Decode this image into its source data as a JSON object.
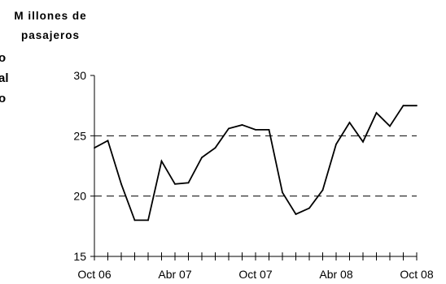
{
  "chart_data": {
    "type": "line",
    "title": "",
    "ylabel_lines": [
      "M illones de",
      "pasajeros"
    ],
    "side_label_fragments": [
      "o",
      "al",
      "o"
    ],
    "xlabel": "",
    "ylim": [
      15,
      30
    ],
    "yticks": [
      15,
      20,
      25,
      30
    ],
    "dashed_gridlines_at": [
      20,
      25
    ],
    "x_tick_labels": [
      "Oct 06",
      "Abr 07",
      "Oct 07",
      "Abr 08",
      "Oct 08"
    ],
    "x_tick_label_month_index": [
      0,
      6,
      12,
      18,
      24
    ],
    "month_count": 25,
    "line_color": "#000000",
    "grid_color": "#000000",
    "series": [
      {
        "values": [
          24.0,
          24.6,
          21.0,
          18.0,
          18.0,
          22.9,
          21.0,
          21.1,
          23.2,
          24.0,
          25.6,
          25.9,
          25.5,
          25.5,
          20.3,
          18.5,
          19.0,
          20.5,
          24.3,
          26.1,
          24.5,
          26.9,
          25.8,
          27.5,
          27.5
        ]
      }
    ]
  }
}
